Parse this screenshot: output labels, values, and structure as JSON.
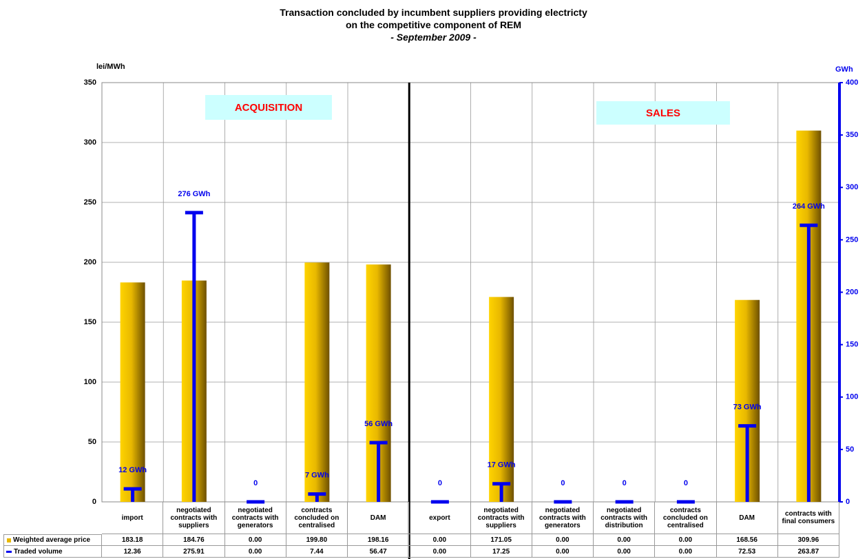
{
  "chart_data": {
    "type": "bar_volume",
    "title": [
      "Transaction concluded by incumbent suppliers providing electricty",
      "on the competitive component of REM"
    ],
    "subtitle": "- September 2009 -",
    "y_label": "lei/MWh",
    "y2_label": "GWh",
    "annotations": [
      "ACQUISITION",
      "SALES"
    ],
    "categories": [
      "import",
      "negotiated contracts with suppliers",
      "negotiated contracts with generators",
      "contracts concluded on centralised",
      "DAM",
      "export",
      "negotiated contracts with suppliers",
      "negotiated contracts with generators",
      "negotiated contracts with distribution",
      "contracts concluded on centralised",
      "DAM",
      "contracts with final consumers"
    ],
    "series": [
      {
        "name": "Weighted average price",
        "color": "#e8b800",
        "values": [
          183.18,
          184.76,
          0,
          199.8,
          198.16,
          0,
          171.05,
          0,
          0,
          0,
          168.56,
          309.96
        ],
        "table_labels": [
          "183.18",
          "184.76",
          "0.00",
          "199.80",
          "198.16",
          "0.00",
          "171.05",
          "0.00",
          "0.00",
          "0.00",
          "168.56",
          "309.96"
        ]
      },
      {
        "name": "Traded volume",
        "color": "#0000ee",
        "axis": "y2",
        "values": [
          12.36,
          275.91,
          0,
          7.44,
          56.47,
          0,
          17.25,
          0,
          0,
          0,
          72.53,
          263.87
        ],
        "value_labels": [
          "12 GWh",
          "276 GWh",
          "0",
          "7 GWh",
          "56 GWh",
          "0",
          "17 GWh",
          "0",
          "0",
          "0",
          "73 GWh",
          "264 GWh"
        ],
        "table_labels": [
          "12.36",
          "275.91",
          "0.00",
          "7.44",
          "56.47",
          "0.00",
          "17.25",
          "0.00",
          "0.00",
          "0.00",
          "72.53",
          "263.87"
        ]
      }
    ],
    "ylim": [
      0,
      350
    ],
    "yticks": [
      0,
      50,
      100,
      150,
      200,
      250,
      300,
      350
    ],
    "y2lim": [
      0,
      400
    ],
    "y2ticks": [
      0,
      50,
      100,
      150,
      200,
      250,
      300,
      350,
      400
    ],
    "grid": true
  }
}
